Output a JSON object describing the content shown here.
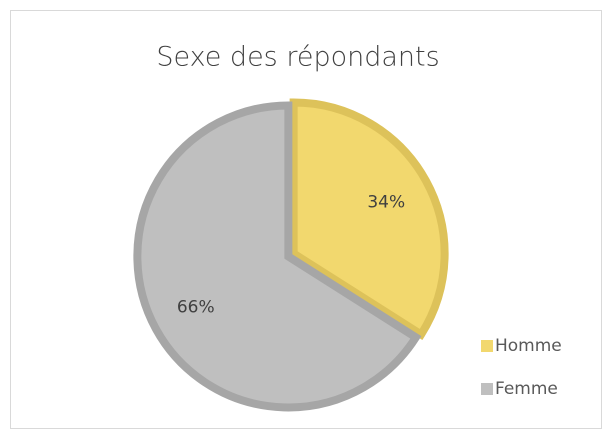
{
  "chart_data": {
    "type": "pie",
    "title": "Sexe des répondants",
    "categories": [
      "Homme",
      "Femme"
    ],
    "values": [
      34,
      66
    ],
    "value_labels": [
      "34%",
      "66%"
    ],
    "colors": [
      "#f2d86e",
      "#bfbfbf"
    ],
    "edge_colors": [
      "#ddc25a",
      "#a6a6a6"
    ],
    "legend": "right"
  }
}
